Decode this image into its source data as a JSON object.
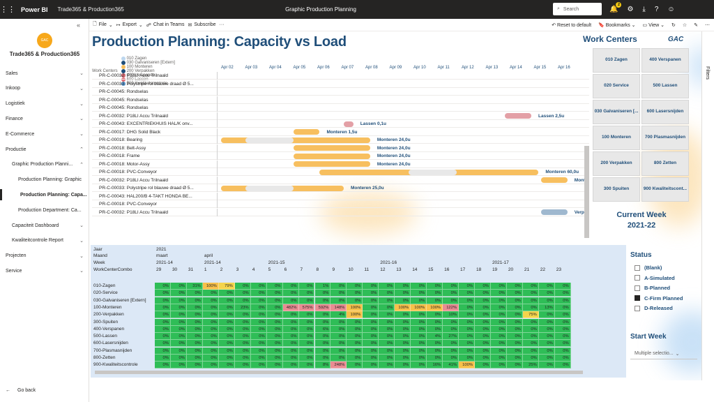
{
  "topbar": {
    "brand": "Power BI",
    "crumb": "Trade365 & Production365",
    "title": "Graphic Production Planning",
    "search": "Search",
    "badge": "2"
  },
  "sidebar": {
    "logo": "GAC",
    "workspace": "Trade365 & Production365",
    "items": [
      {
        "label": "Sales",
        "indent": 0,
        "chev": "⌄"
      },
      {
        "label": "Inkoop",
        "indent": 0,
        "chev": "⌄"
      },
      {
        "label": "Logistiek",
        "indent": 0,
        "chev": "⌄"
      },
      {
        "label": "Finance",
        "indent": 0,
        "chev": "⌄"
      },
      {
        "label": "E-Commerce",
        "indent": 0,
        "chev": "⌄"
      },
      {
        "label": "Productie",
        "indent": 0,
        "chev": "⌃"
      },
      {
        "label": "Graphic Production Planni...",
        "indent": 1,
        "chev": "⌃"
      },
      {
        "label": "Production Planning: Graphic",
        "indent": 2,
        "chev": ""
      },
      {
        "label": "Production Planning: Capa...",
        "indent": 2,
        "chev": "",
        "active": true
      },
      {
        "label": "Production Department: Ca...",
        "indent": 2,
        "chev": ""
      },
      {
        "label": "Capaciteit Dashboard",
        "indent": 1,
        "chev": "⌄"
      },
      {
        "label": "Kwaliteitcontrole Report",
        "indent": 1,
        "chev": "⌄"
      },
      {
        "label": "Projecten",
        "indent": 0,
        "chev": "⌄"
      },
      {
        "label": "Service",
        "indent": 0,
        "chev": "⌄"
      }
    ],
    "goback": "Go back"
  },
  "cmdbar": {
    "file": "File",
    "export": "Export",
    "chat": "Chat in Teams",
    "subscribe": "Subscribe",
    "more": "···",
    "reset": "Reset to default",
    "bookmarks": "Bookmarks",
    "view": "View"
  },
  "filters": "Filters",
  "report": {
    "title": "Production Planning: Capacity vs Load",
    "legend_title": "Work Centers",
    "legend": [
      {
        "label": "010 Zagen",
        "color": "#bcd6ee"
      },
      {
        "label": "030 Galvaniseren [Extern]",
        "color": "#1f4e79"
      },
      {
        "label": "100 Monteren",
        "color": "#f7bf5f"
      },
      {
        "label": "200 Verpakken",
        "color": "#1f4e79"
      },
      {
        "label": "400 Verspanen",
        "color": "#e06c75"
      },
      {
        "label": "500 Lassen",
        "color": "#e06c75"
      },
      {
        "label": "900 Kwaliteitscontrole",
        "color": "#5b9bd5"
      }
    ],
    "dates": [
      "Apr 02",
      "Apr 03",
      "Apr 04",
      "Apr 05",
      "Apr 06",
      "Apr 07",
      "Apr 08",
      "Apr 09",
      "Apr 10",
      "Apr 11",
      "Apr 12",
      "Apr 13",
      "Apr 14",
      "Apr 15",
      "Apr 16"
    ],
    "gantt": [
      {
        "label": "PR-C-00032: P18LI Accu Trilnaald"
      },
      {
        "label": "PR-C-00033: Polystripe rol blauwe draad Ø 5..."
      },
      {
        "label": "PR-C-00045: Rondselas"
      },
      {
        "label": "PR-C-00045: Rondselas"
      },
      {
        "label": "PR-C-00045: Rondselas"
      },
      {
        "label": "PR-C-00032: P18LI Accu Trilnaald",
        "bar": {
          "start": 11.8,
          "end": 12.9,
          "color": "#e3a0a6"
        },
        "text": "Lassen 2,5u"
      },
      {
        "label": "PR-C-00043: EXCENTRIEKHUIS HAL/K onv...",
        "bar": {
          "start": 5.1,
          "end": 5.5,
          "color": "#e3a0a6"
        },
        "text": "Lassen 0,1u"
      },
      {
        "label": "PR-C-00017: DHG Solid Black",
        "bar": {
          "start": 3.0,
          "end": 4.1,
          "color": "#f7bf5f"
        },
        "text": "Monteren 1,5u"
      },
      {
        "label": "PR-C-00018: Bearing",
        "bar": {
          "start": 0.0,
          "end": 6.2,
          "color": "#f7bf5f",
          "ghost": [
            1,
            3
          ]
        },
        "text": "Monteren 24,0u"
      },
      {
        "label": "PR-C-00018: Belt-Assy",
        "bar": {
          "start": 3.0,
          "end": 6.2,
          "color": "#f7bf5f"
        },
        "text": "Monteren 24,0u"
      },
      {
        "label": "PR-C-00018: Frame",
        "bar": {
          "start": 3.0,
          "end": 6.2,
          "color": "#f7bf5f"
        },
        "text": "Monteren 24,0u"
      },
      {
        "label": "PR-C-00018: Motor-Assy",
        "bar": {
          "start": 3.0,
          "end": 6.2,
          "color": "#f7bf5f"
        },
        "text": "Monteren 24,0u"
      },
      {
        "label": "PR-C-00018: PVC-Conveyor",
        "bar": {
          "start": 4.1,
          "end": 13.2,
          "color": "#f7bf5f",
          "ghost": [
            7.8,
            9.8
          ]
        },
        "text": "Monteren 60,0u"
      },
      {
        "label": "PR-C-00032: P18LI Accu Trilnaald",
        "bar": {
          "start": 13.3,
          "end": 14.4,
          "color": "#f7bf5f"
        },
        "text": "Monter"
      },
      {
        "label": "PR-C-00033: Polystripe rol blauwe draad Ø 5...",
        "bar": {
          "start": 0.0,
          "end": 5.1,
          "color": "#f7bf5f",
          "ghost": [
            1,
            3
          ]
        },
        "text": "Monteren 25,0u"
      },
      {
        "label": "PR-C-00043: HAL200/B 4-TAKT HONDA BE..."
      },
      {
        "label": "PR-C-00018: PVC-Conveyor"
      },
      {
        "label": "PR-C-00032: P18LI Accu Trilnaald",
        "bar": {
          "start": 13.3,
          "end": 14.4,
          "color": "#9fb8cf"
        },
        "text": "Verpak"
      }
    ],
    "work_centers_title": "Work Centers",
    "gac": "GAC",
    "work_centers": [
      "010 Zagen",
      "400 Verspanen",
      "020 Service",
      "500 Lassen",
      "030 Galvaniseren [...",
      "600 Lasersnijden",
      "100 Monteren",
      "700 Plasmasnijden",
      "200 Verpakken",
      "800 Zetten",
      "300 Spuiten",
      "900 Kwaliteitscont..."
    ],
    "current_week_label": "Current Week",
    "current_week": "2021-22",
    "matrix": {
      "hdr": {
        "jaar": "Jaar",
        "maand": "Maand",
        "week": "Week",
        "combo": "WorkCenterCombo",
        "year": "2021",
        "m1": "maart",
        "m2": "april"
      },
      "weeks": [
        {
          "label": "2021-14",
          "col": 0
        },
        {
          "label": "2021-14",
          "col": 3
        },
        {
          "label": "2021-15",
          "col": 7
        },
        {
          "label": "2021-16",
          "col": 14
        },
        {
          "label": "2021-17",
          "col": 21
        }
      ],
      "days": [
        "29",
        "30",
        "31",
        "1",
        "2",
        "3",
        "4",
        "5",
        "6",
        "7",
        "8",
        "9",
        "10",
        "11",
        "12",
        "13",
        "14",
        "15",
        "16",
        "17",
        "18",
        "19",
        "20",
        "21",
        "22",
        "23"
      ],
      "rows": [
        {
          "name": "010-Zagen",
          "cells": {
            "2": "31%",
            "3": "100%",
            "4": "79%",
            "10": "1%"
          }
        },
        {
          "name": "020-Service",
          "cells": {}
        },
        {
          "name": "030-Galvaniseren [Extern]",
          "cells": {}
        },
        {
          "name": "100-Monteren",
          "cells": {
            "5": "23%",
            "8": "482%",
            "9": "575%",
            "10": "592%",
            "11": "148%",
            "12": "100%",
            "15": "100%",
            "16": "100%",
            "17": "100%",
            "18": "122%",
            "24": "13%"
          }
        },
        {
          "name": "200-Verpakken",
          "cells": {
            "11": "4%",
            "12": "100%",
            "18": "10%",
            "23": "75%"
          }
        },
        {
          "name": "300-Spuiten",
          "cells": {}
        },
        {
          "name": "400-Verspanen",
          "cells": {
            "10": "6%"
          }
        },
        {
          "name": "500-Lassen",
          "cells": {
            "17": "4%",
            "18": "27%"
          }
        },
        {
          "name": "600-Lasersnijden",
          "cells": {}
        },
        {
          "name": "700-Plasmasnijden",
          "cells": {}
        },
        {
          "name": "800-Zetten",
          "cells": {}
        },
        {
          "name": "900-Kwaliteitscontrole",
          "cells": {
            "10": "8%",
            "11": "248%",
            "17": "16%",
            "18": "41%",
            "19": "100%",
            "23": "25%"
          }
        }
      ]
    },
    "status": {
      "title": "Status",
      "options": [
        {
          "label": "(Blank)",
          "on": false
        },
        {
          "label": "A-Simulated",
          "on": false
        },
        {
          "label": "B-Planned",
          "on": false
        },
        {
          "label": "C-Firm Planned",
          "on": true
        },
        {
          "label": "D-Released",
          "on": false
        }
      ]
    },
    "start_week": {
      "title": "Start Week",
      "value": "Multiple selectio..."
    }
  }
}
